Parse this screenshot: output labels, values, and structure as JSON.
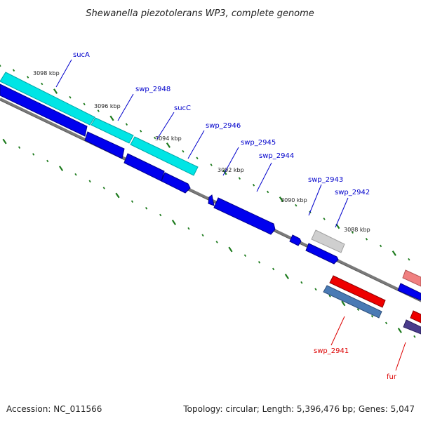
{
  "title": "Shewanella piezotolerans WP3, complete genome",
  "accession": "Accession: NC_011566",
  "topology": "Topology: circular; Length: 5,396,476 bp; Genes: 5,047",
  "colors": {
    "forward_gene": "#0000ee",
    "cds_track": "#00e5e5",
    "reverse_gene": "#ee0000",
    "steel_blue": "#4a7ab4",
    "salmon": "#f08080",
    "gray": "#bdbdbd",
    "purple": "#4a3c8c",
    "tick": "#1c7a1c",
    "backbone": "#7a7a7a"
  },
  "scale_labels": [
    "3098 kbp",
    "3096 kbp",
    "3094 kbp",
    "3092 kbp",
    "3090 kbp",
    "3088 kbp"
  ],
  "gene_labels": [
    {
      "name": "sucA",
      "strand": "forward"
    },
    {
      "name": "swp_2948",
      "strand": "forward"
    },
    {
      "name": "sucC",
      "strand": "forward"
    },
    {
      "name": "swp_2946",
      "strand": "forward"
    },
    {
      "name": "swp_2945",
      "strand": "forward"
    },
    {
      "name": "swp_2944",
      "strand": "forward"
    },
    {
      "name": "swp_2943",
      "strand": "forward"
    },
    {
      "name": "swp_2942",
      "strand": "forward"
    },
    {
      "name": "swp_2941",
      "strand": "reverse"
    },
    {
      "name": "fur",
      "strand": "reverse"
    }
  ]
}
